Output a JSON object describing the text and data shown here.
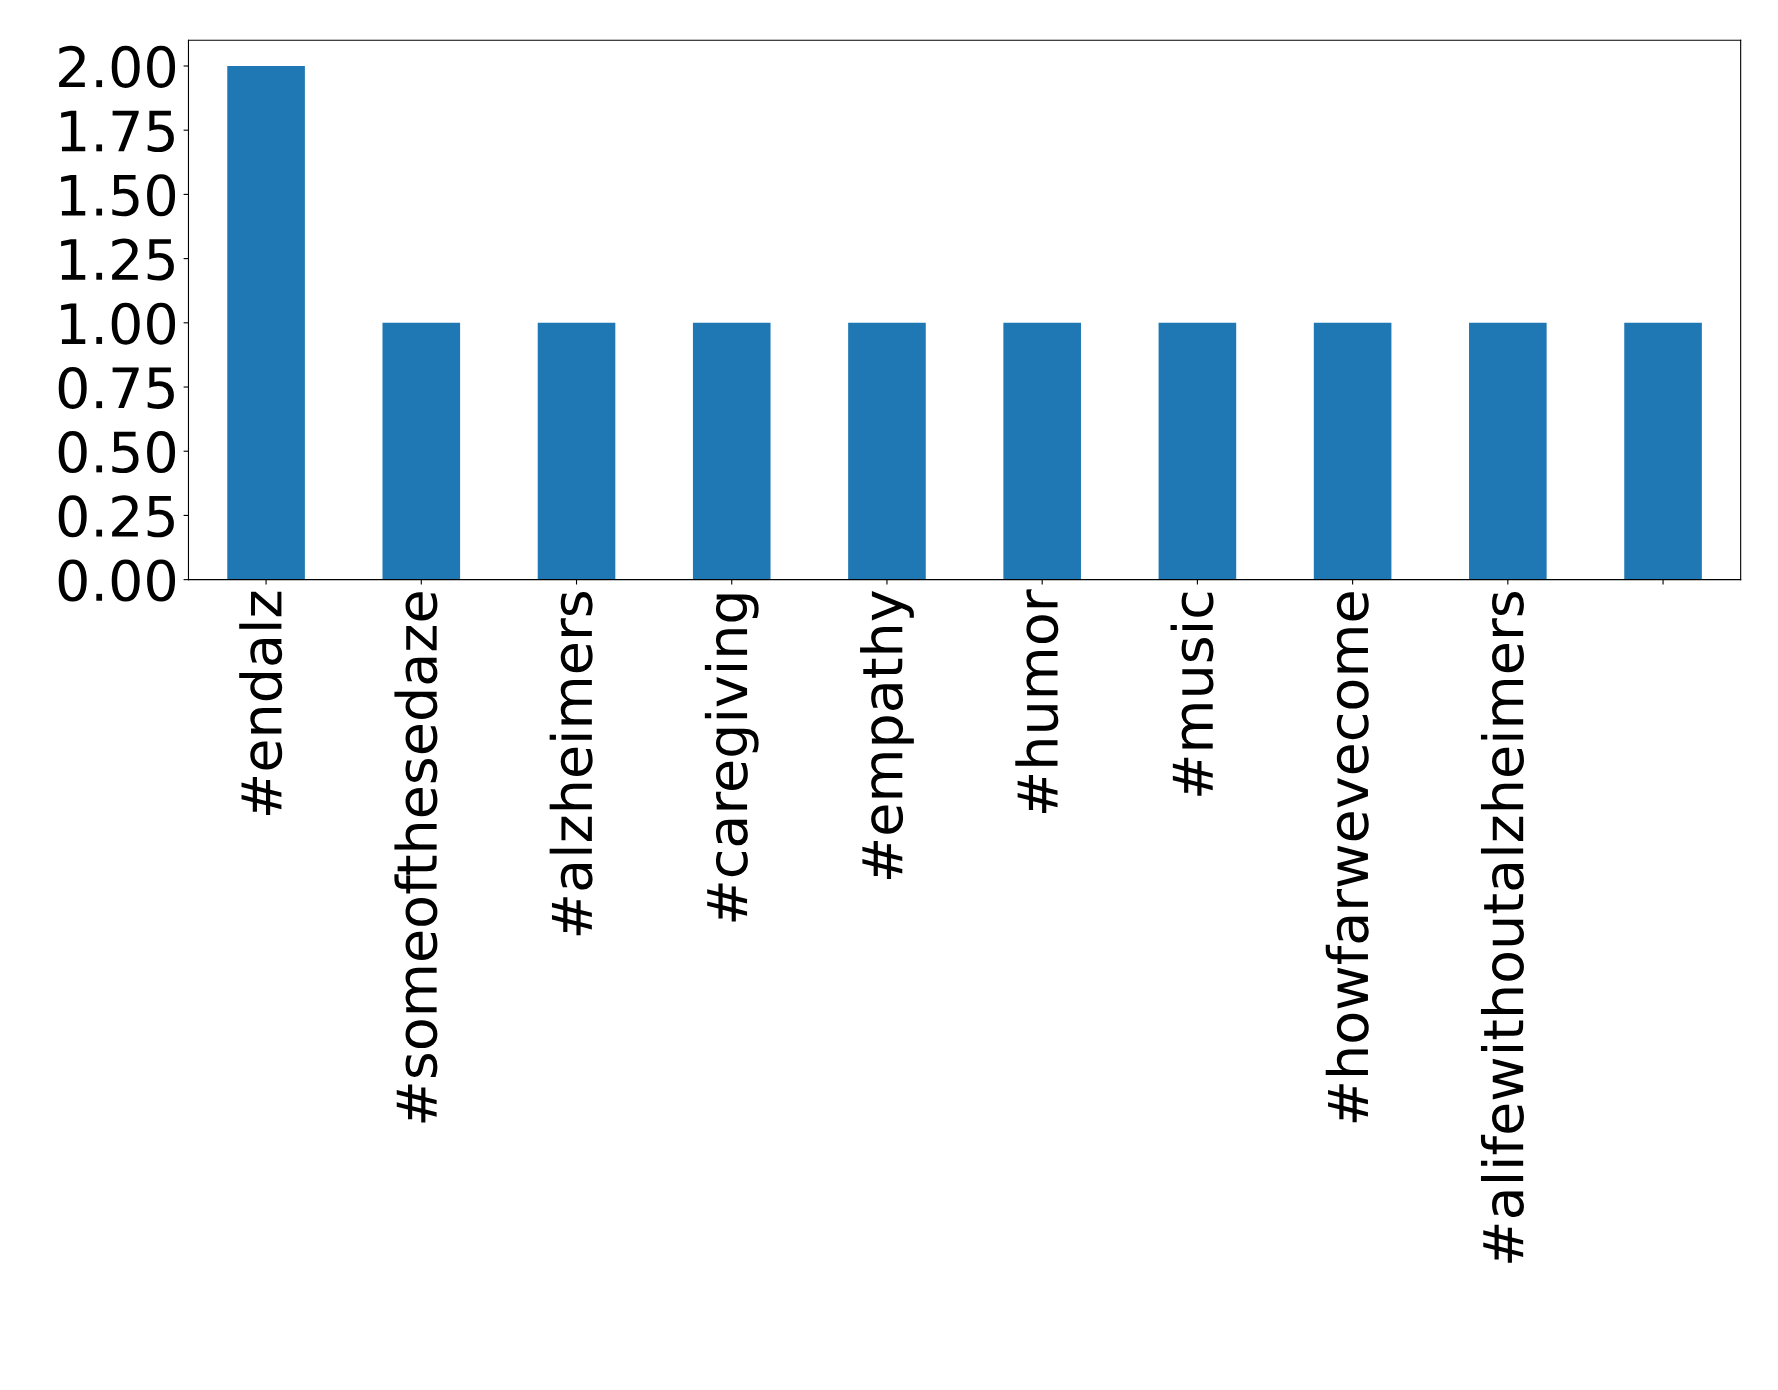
{
  "chart_data": {
    "type": "bar",
    "categories": [
      "#endalz",
      "#someofthesedaze",
      "#alzheimers",
      "#caregiving",
      "#empathy",
      "#humor",
      "#music",
      "#howfarwevecome",
      "#alifewithoutalzheimers",
      null
    ],
    "values": [
      2,
      1,
      1,
      1,
      1,
      1,
      1,
      1,
      1,
      1
    ],
    "color": "#1f77b4",
    "ylim": [
      0,
      2.1
    ],
    "yticks": [
      {
        "value": 0,
        "label": "0.00"
      },
      {
        "value": 0.25,
        "label": "0.25"
      },
      {
        "value": 0.5,
        "label": "0.50"
      },
      {
        "value": 0.75,
        "label": "0.75"
      },
      {
        "value": 1,
        "label": "1.00"
      },
      {
        "value": 1.25,
        "label": "1.25"
      },
      {
        "value": 1.5,
        "label": "1.50"
      },
      {
        "value": 1.75,
        "label": "1.75"
      },
      {
        "value": 2,
        "label": "2.00"
      }
    ],
    "grid": false,
    "legend": false
  }
}
